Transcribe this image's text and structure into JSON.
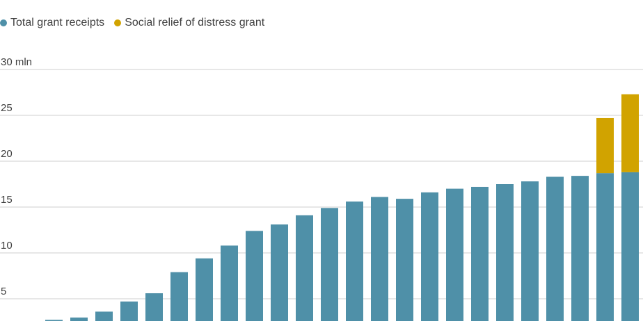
{
  "colors": {
    "total": "#4f90a8",
    "srd": "#d1a300",
    "grid": "#cfcfcf"
  },
  "legend": [
    {
      "label": "Total grant receipts",
      "color": "#4f90a8"
    },
    {
      "label": "Social relief of distress grant",
      "color": "#d1a300"
    }
  ],
  "chart_data": {
    "type": "bar",
    "stacked": true,
    "y_unit_label": "30 mln",
    "ylim": [
      2.5,
      30
    ],
    "yticks": [
      5,
      10,
      15,
      20,
      25,
      30
    ],
    "ytick_labels": [
      "5",
      "10",
      "15",
      "20",
      "25",
      "30 mln"
    ],
    "grid": true,
    "legend_position": "top-left",
    "series": [
      {
        "name": "Total grant receipts",
        "values": [
          2.7,
          2.95,
          3.6,
          4.7,
          5.6,
          7.9,
          9.4,
          10.8,
          12.4,
          13.1,
          14.1,
          14.9,
          15.6,
          16.1,
          15.9,
          16.6,
          17.0,
          17.2,
          17.5,
          17.8,
          18.3,
          18.4,
          18.7,
          18.8
        ]
      },
      {
        "name": "Social relief of distress grant",
        "values": [
          0,
          0,
          0,
          0,
          0,
          0,
          0,
          0,
          0,
          0,
          0,
          0,
          0,
          0,
          0,
          0,
          0,
          0,
          0,
          0,
          0,
          0,
          6.0,
          8.5
        ]
      }
    ]
  }
}
